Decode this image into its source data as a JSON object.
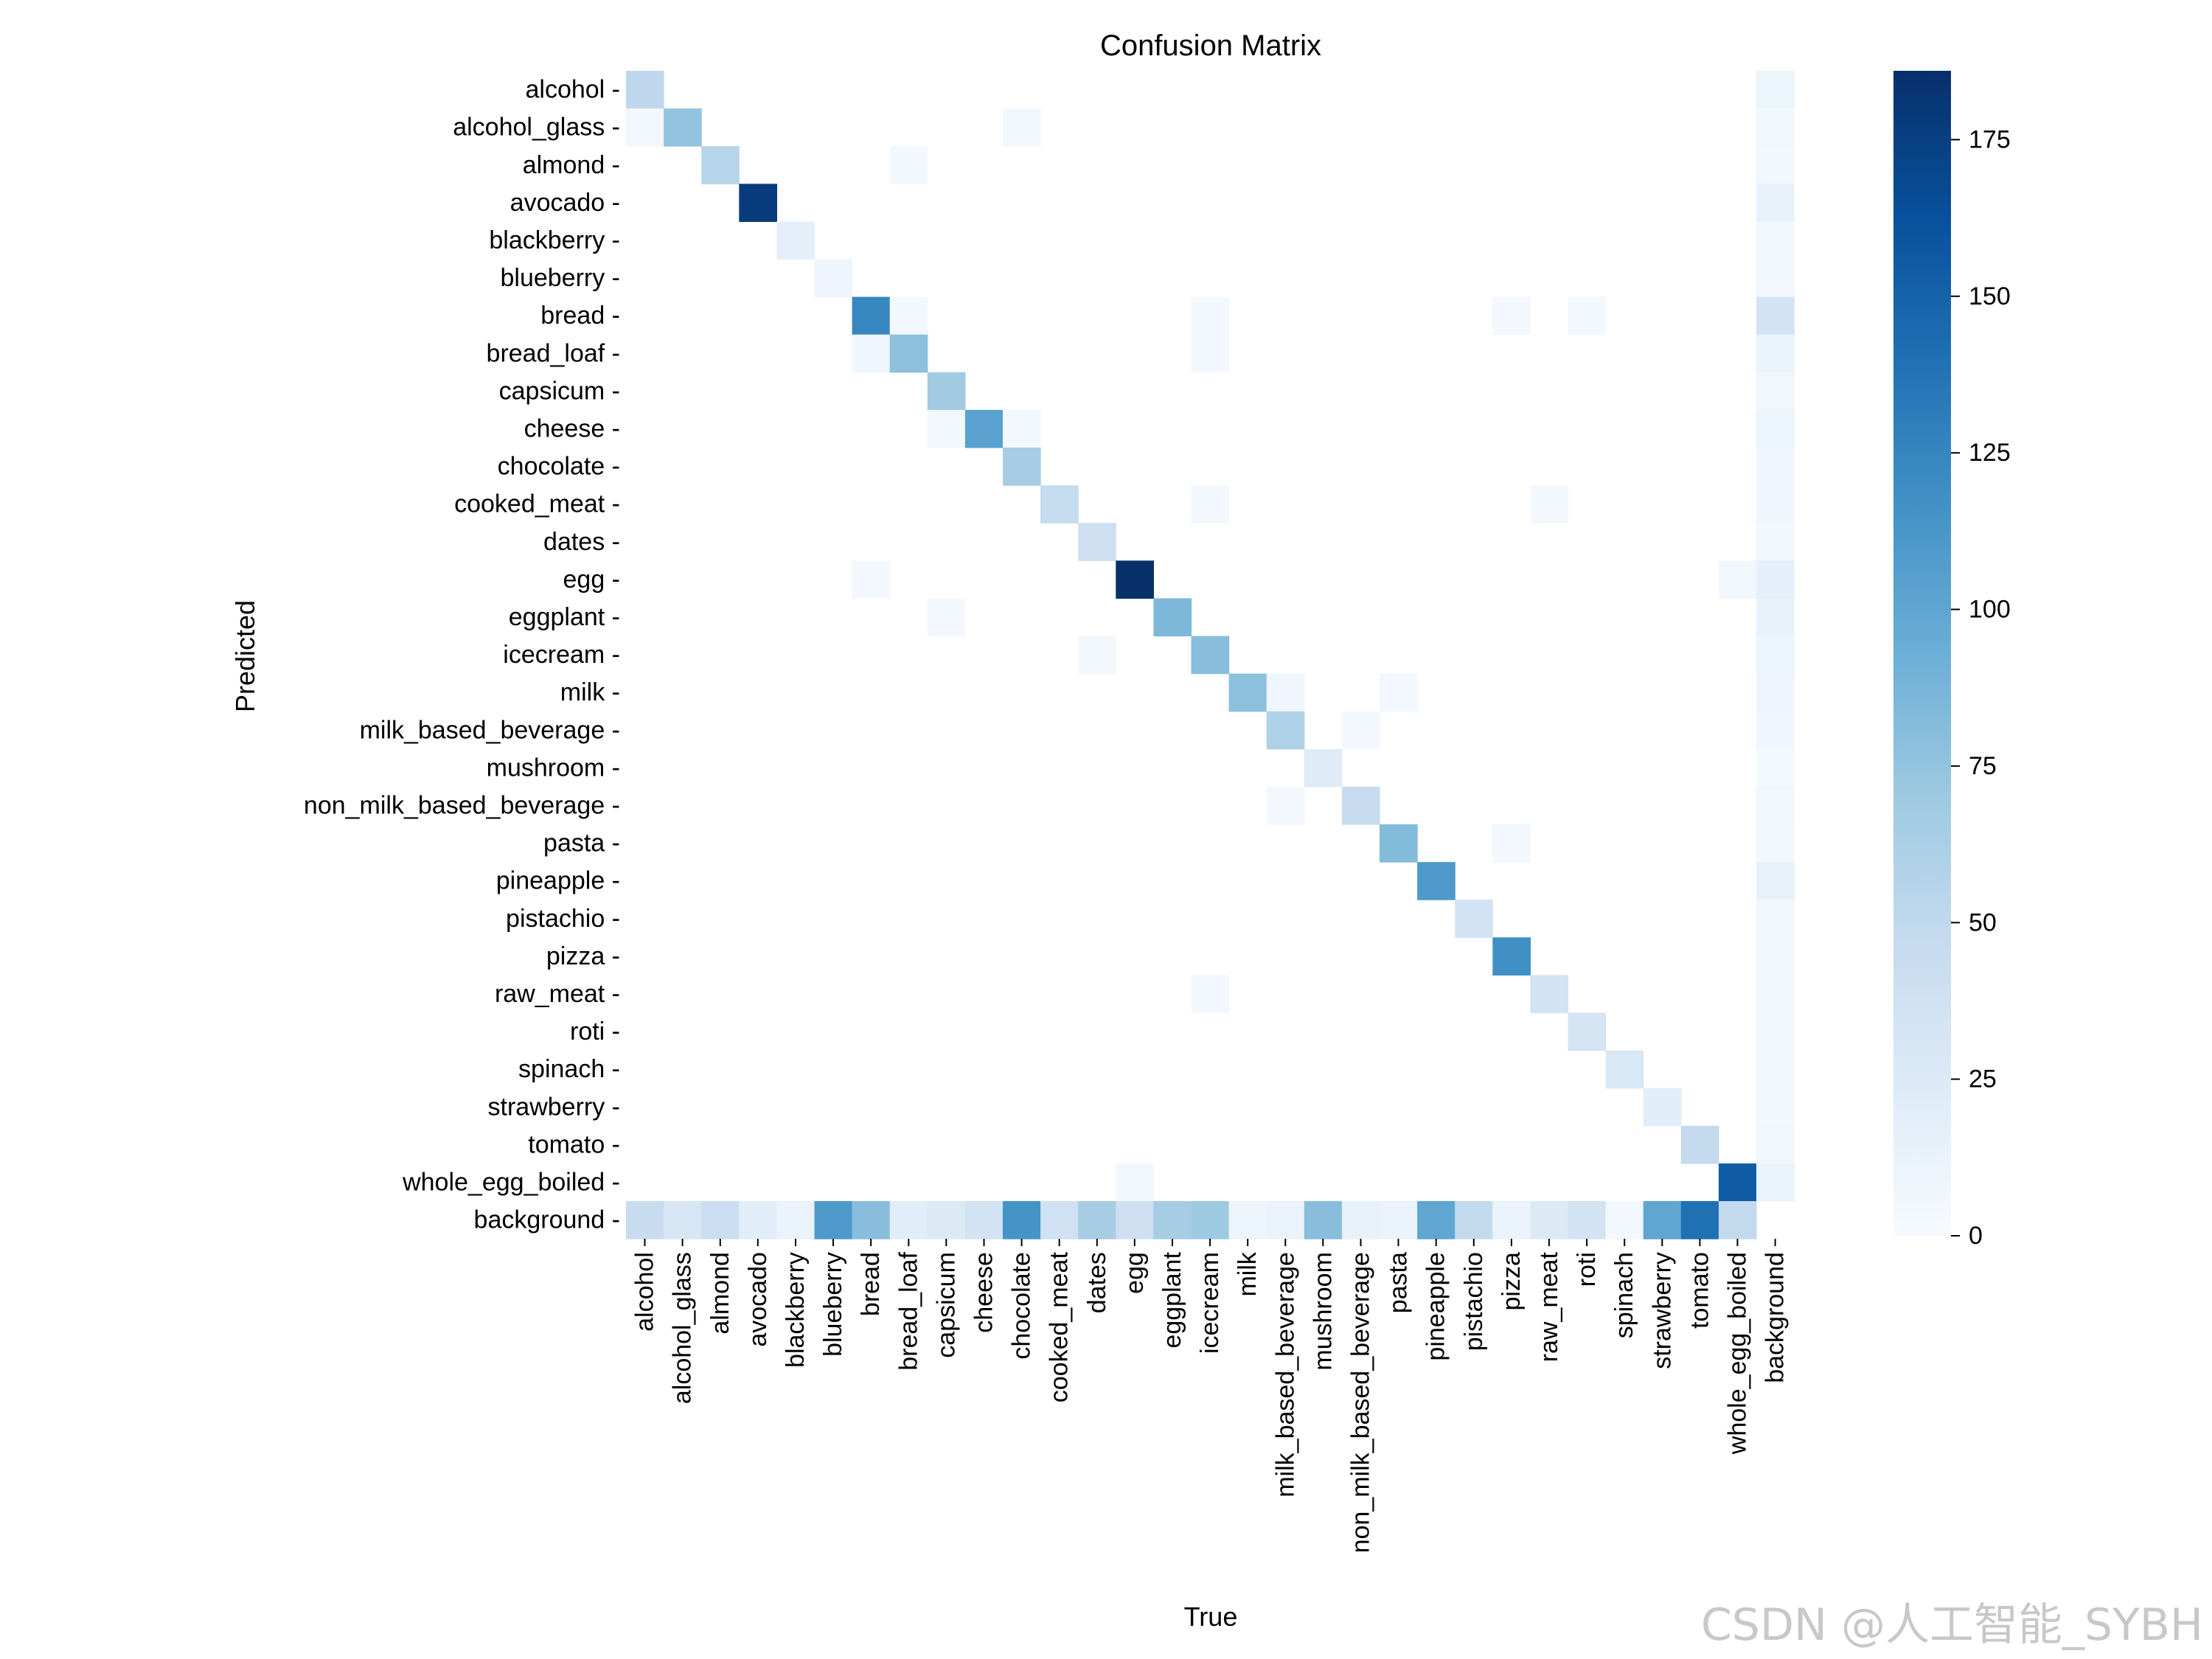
{
  "chart_data": {
    "type": "heatmap",
    "title": "Confusion Matrix",
    "xlabel": "True",
    "ylabel": "Predicted",
    "labels": [
      "alcohol",
      "alcohol_glass",
      "almond",
      "avocado",
      "blackberry",
      "blueberry",
      "bread",
      "bread_loaf",
      "capsicum",
      "cheese",
      "chocolate",
      "cooked_meat",
      "dates",
      "egg",
      "eggplant",
      "icecream",
      "milk",
      "milk_based_beverage",
      "mushroom",
      "non_milk_based_beverage",
      "pasta",
      "pineapple",
      "pistachio",
      "pizza",
      "raw_meat",
      "roti",
      "spinach",
      "strawberry",
      "tomato",
      "whole_egg_boiled",
      "background"
    ],
    "colorbar": {
      "min": 0,
      "max": 186,
      "ticks": [
        0,
        25,
        50,
        75,
        100,
        125,
        150,
        175
      ],
      "colormap": "Blues"
    },
    "matrix": [
      [
        50,
        0,
        0,
        0,
        0,
        0,
        0,
        0,
        0,
        0,
        0,
        0,
        0,
        0,
        0,
        0,
        0,
        0,
        0,
        0,
        0,
        0,
        0,
        0,
        0,
        0,
        0,
        0,
        0,
        0,
        9
      ],
      [
        4,
        75,
        0,
        0,
        0,
        0,
        0,
        0,
        0,
        0,
        4,
        0,
        0,
        0,
        0,
        0,
        0,
        0,
        0,
        0,
        0,
        0,
        0,
        0,
        0,
        0,
        0,
        0,
        0,
        0,
        6
      ],
      [
        0,
        0,
        55,
        0,
        0,
        0,
        0,
        4,
        0,
        0,
        0,
        0,
        0,
        0,
        0,
        0,
        0,
        0,
        0,
        0,
        0,
        0,
        0,
        0,
        0,
        0,
        0,
        0,
        0,
        0,
        4
      ],
      [
        0,
        0,
        0,
        178,
        0,
        0,
        0,
        0,
        0,
        0,
        0,
        0,
        0,
        0,
        0,
        0,
        0,
        0,
        0,
        0,
        0,
        0,
        0,
        0,
        0,
        0,
        0,
        0,
        0,
        0,
        13
      ],
      [
        0,
        0,
        0,
        0,
        18,
        0,
        0,
        0,
        0,
        0,
        0,
        0,
        0,
        0,
        0,
        0,
        0,
        0,
        0,
        0,
        0,
        0,
        0,
        0,
        0,
        0,
        0,
        0,
        0,
        0,
        5
      ],
      [
        0,
        0,
        0,
        0,
        0,
        8,
        0,
        0,
        0,
        0,
        0,
        0,
        0,
        0,
        0,
        0,
        0,
        0,
        0,
        0,
        0,
        0,
        0,
        0,
        0,
        0,
        0,
        0,
        0,
        0,
        4
      ],
      [
        0,
        0,
        0,
        0,
        0,
        0,
        125,
        5,
        0,
        0,
        0,
        0,
        0,
        0,
        0,
        4,
        0,
        0,
        0,
        0,
        0,
        0,
        0,
        4,
        0,
        5,
        0,
        0,
        0,
        0,
        35
      ],
      [
        0,
        0,
        0,
        0,
        0,
        0,
        7,
        78,
        0,
        0,
        0,
        0,
        0,
        0,
        0,
        4,
        0,
        0,
        0,
        0,
        0,
        0,
        0,
        0,
        0,
        0,
        0,
        0,
        0,
        0,
        11
      ],
      [
        0,
        0,
        0,
        0,
        0,
        0,
        0,
        0,
        68,
        0,
        0,
        0,
        0,
        0,
        0,
        0,
        0,
        0,
        0,
        0,
        0,
        0,
        0,
        0,
        0,
        0,
        0,
        0,
        0,
        0,
        6
      ],
      [
        0,
        0,
        0,
        0,
        0,
        0,
        0,
        0,
        5,
        103,
        4,
        0,
        0,
        0,
        0,
        0,
        0,
        0,
        0,
        0,
        0,
        0,
        0,
        0,
        0,
        0,
        0,
        0,
        0,
        0,
        10
      ],
      [
        0,
        0,
        0,
        0,
        0,
        0,
        0,
        0,
        0,
        0,
        65,
        0,
        0,
        0,
        0,
        0,
        0,
        0,
        0,
        0,
        0,
        0,
        0,
        0,
        0,
        0,
        0,
        0,
        0,
        0,
        7
      ],
      [
        0,
        0,
        0,
        0,
        0,
        0,
        0,
        0,
        0,
        0,
        0,
        47,
        0,
        0,
        0,
        5,
        0,
        0,
        0,
        0,
        0,
        0,
        0,
        0,
        5,
        0,
        0,
        0,
        0,
        0,
        7
      ],
      [
        0,
        0,
        0,
        0,
        0,
        0,
        0,
        0,
        0,
        0,
        0,
        0,
        40,
        0,
        0,
        0,
        0,
        0,
        0,
        0,
        0,
        0,
        0,
        0,
        0,
        0,
        0,
        0,
        0,
        0,
        5
      ],
      [
        0,
        0,
        0,
        0,
        0,
        0,
        5,
        0,
        0,
        0,
        0,
        0,
        0,
        186,
        0,
        0,
        0,
        0,
        0,
        0,
        0,
        0,
        0,
        0,
        0,
        0,
        0,
        0,
        0,
        6,
        18
      ],
      [
        0,
        0,
        0,
        0,
        0,
        0,
        0,
        0,
        5,
        0,
        0,
        0,
        0,
        0,
        85,
        0,
        0,
        0,
        0,
        0,
        0,
        0,
        0,
        0,
        0,
        0,
        0,
        0,
        0,
        0,
        13
      ],
      [
        0,
        0,
        0,
        0,
        0,
        0,
        0,
        0,
        0,
        0,
        0,
        0,
        5,
        0,
        0,
        80,
        0,
        0,
        0,
        0,
        0,
        0,
        0,
        0,
        0,
        0,
        0,
        0,
        0,
        0,
        9
      ],
      [
        0,
        0,
        0,
        0,
        0,
        0,
        0,
        0,
        0,
        0,
        0,
        0,
        0,
        0,
        0,
        0,
        78,
        7,
        0,
        0,
        5,
        0,
        0,
        0,
        0,
        0,
        0,
        0,
        0,
        0,
        8
      ],
      [
        0,
        0,
        0,
        0,
        0,
        0,
        0,
        0,
        0,
        0,
        0,
        0,
        0,
        0,
        0,
        0,
        0,
        60,
        0,
        4,
        0,
        0,
        0,
        0,
        0,
        0,
        0,
        0,
        0,
        0,
        7
      ],
      [
        0,
        0,
        0,
        0,
        0,
        0,
        0,
        0,
        0,
        0,
        0,
        0,
        0,
        0,
        0,
        0,
        0,
        0,
        22,
        0,
        0,
        0,
        0,
        0,
        0,
        0,
        0,
        0,
        0,
        0,
        3
      ],
      [
        0,
        0,
        0,
        0,
        0,
        0,
        0,
        0,
        0,
        0,
        0,
        0,
        0,
        0,
        0,
        0,
        0,
        5,
        0,
        45,
        0,
        0,
        0,
        0,
        0,
        0,
        0,
        0,
        0,
        0,
        6
      ],
      [
        0,
        0,
        0,
        0,
        0,
        0,
        0,
        0,
        0,
        0,
        0,
        0,
        0,
        0,
        0,
        0,
        0,
        0,
        0,
        0,
        82,
        0,
        0,
        5,
        0,
        0,
        0,
        0,
        0,
        0,
        5
      ],
      [
        0,
        0,
        0,
        0,
        0,
        0,
        0,
        0,
        0,
        0,
        0,
        0,
        0,
        0,
        0,
        0,
        0,
        0,
        0,
        0,
        0,
        110,
        0,
        0,
        0,
        0,
        0,
        0,
        0,
        0,
        14
      ],
      [
        0,
        0,
        0,
        0,
        0,
        0,
        0,
        0,
        0,
        0,
        0,
        0,
        0,
        0,
        0,
        0,
        0,
        0,
        0,
        0,
        0,
        0,
        35,
        0,
        0,
        0,
        0,
        0,
        0,
        0,
        5
      ],
      [
        0,
        0,
        0,
        0,
        0,
        0,
        0,
        0,
        0,
        0,
        0,
        0,
        0,
        0,
        0,
        0,
        0,
        0,
        0,
        0,
        0,
        0,
        0,
        118,
        0,
        0,
        0,
        0,
        0,
        0,
        5
      ],
      [
        0,
        0,
        0,
        0,
        0,
        0,
        0,
        0,
        0,
        0,
        0,
        0,
        0,
        0,
        0,
        4,
        0,
        0,
        0,
        0,
        0,
        0,
        0,
        0,
        35,
        0,
        0,
        0,
        0,
        0,
        4
      ],
      [
        0,
        0,
        0,
        0,
        0,
        0,
        0,
        0,
        0,
        0,
        0,
        0,
        0,
        0,
        0,
        0,
        0,
        0,
        0,
        0,
        0,
        0,
        0,
        0,
        0,
        32,
        0,
        0,
        0,
        0,
        5
      ],
      [
        0,
        0,
        0,
        0,
        0,
        0,
        0,
        0,
        0,
        0,
        0,
        0,
        0,
        0,
        0,
        0,
        0,
        0,
        0,
        0,
        0,
        0,
        0,
        0,
        0,
        0,
        28,
        0,
        0,
        0,
        4
      ],
      [
        0,
        0,
        0,
        0,
        0,
        0,
        0,
        0,
        0,
        0,
        0,
        0,
        0,
        0,
        0,
        0,
        0,
        0,
        0,
        0,
        0,
        0,
        0,
        0,
        0,
        0,
        0,
        20,
        0,
        0,
        5
      ],
      [
        0,
        0,
        0,
        0,
        0,
        0,
        0,
        0,
        0,
        0,
        0,
        0,
        0,
        0,
        0,
        0,
        0,
        0,
        0,
        0,
        0,
        0,
        0,
        0,
        0,
        0,
        0,
        0,
        48,
        0,
        6
      ],
      [
        0,
        0,
        0,
        0,
        0,
        0,
        0,
        0,
        0,
        0,
        0,
        0,
        0,
        6,
        0,
        0,
        0,
        0,
        0,
        0,
        0,
        0,
        0,
        0,
        0,
        0,
        0,
        0,
        0,
        155,
        12
      ],
      [
        45,
        30,
        42,
        20,
        12,
        110,
        80,
        20,
        25,
        35,
        115,
        38,
        65,
        40,
        65,
        70,
        10,
        12,
        80,
        15,
        12,
        100,
        48,
        12,
        25,
        35,
        5,
        100,
        140,
        48,
        0
      ]
    ]
  },
  "watermark": "CSDN @人工智能_SYBH"
}
